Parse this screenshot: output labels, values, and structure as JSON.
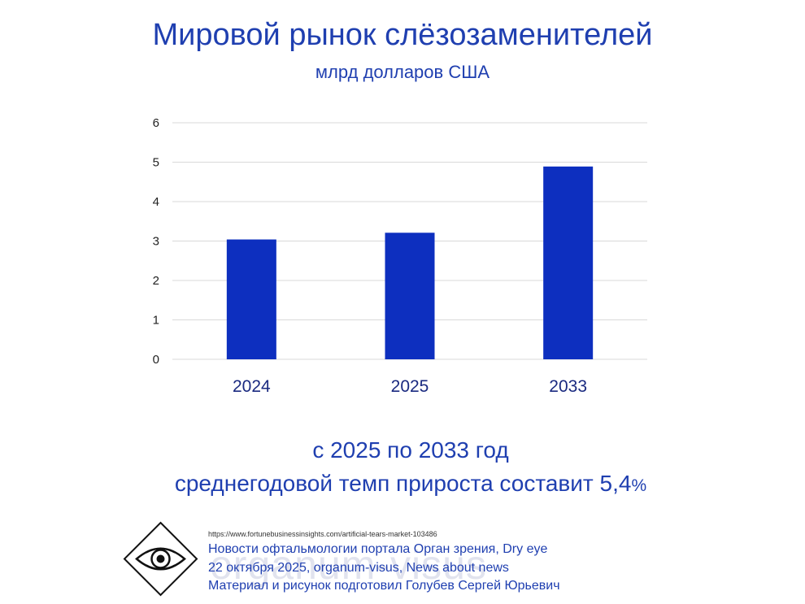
{
  "header": {
    "title": "Мировой рынок слёзозаменителей",
    "subtitle": "млрд долларов США"
  },
  "chart_data": {
    "type": "bar",
    "title": "Мировой рынок слёзозаменителей",
    "subtitle": "млрд долларов США",
    "categories": [
      "2024",
      "2025",
      "2033"
    ],
    "values": [
      3.04,
      3.21,
      4.89
    ],
    "ylim": [
      0,
      6
    ],
    "yticks": [
      "0",
      "1",
      "2",
      "3",
      "4",
      "5",
      "6"
    ],
    "grid": true,
    "legend": "none",
    "bar_color": "#0d2fbf"
  },
  "notes": {
    "line1": "с 2025 по 2033 год",
    "line2": "среднегодовой темп прироста составит 5,4",
    "line2_suffix": "%"
  },
  "footer": {
    "source_url": "https://www.fortunebusinessinsights.com/artificial-tears-market-103486",
    "line1": "Новости офтальмологии портала Орган зрения, Dry eye",
    "line2": "22 октября 2025, organum-visus, News about news",
    "line3": "Материал и рисунок подготовил Голубев Сергей Юрьевич",
    "watermark": "organum-visus",
    "logo_icon": "eye-diamond-logo"
  },
  "colors": {
    "accent": "#1f3fb0",
    "bar": "#0d2fbf"
  }
}
